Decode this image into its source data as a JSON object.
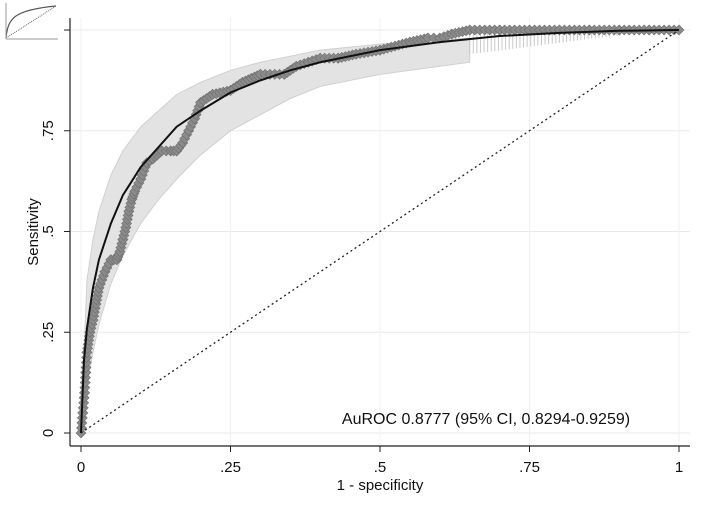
{
  "chart_data": {
    "type": "line",
    "title": "",
    "xlabel": "1 - specificity",
    "ylabel": "Sensitivity",
    "xlim": [
      0,
      1
    ],
    "ylim": [
      0,
      1
    ],
    "x_ticks": [
      0,
      0.25,
      0.5,
      0.75,
      1
    ],
    "x_tick_labels": [
      "0",
      ".25",
      ".5",
      ".75",
      "1"
    ],
    "y_ticks": [
      0,
      0.25,
      0.5,
      0.75,
      1
    ],
    "y_tick_labels": [
      "0",
      ".25",
      ".5",
      ".75",
      "1"
    ],
    "grid": true,
    "annotation": "AuROC 0.8777 (95% CI, 0.8294-0.9259)",
    "auroc": 0.8777,
    "ci": [
      0.8294,
      0.9259
    ],
    "empirical_roc": {
      "x": [
        0,
        0.003,
        0.006,
        0.008,
        0.01,
        0.015,
        0.02,
        0.025,
        0.03,
        0.04,
        0.05,
        0.06,
        0.065,
        0.07,
        0.075,
        0.08,
        0.085,
        0.09,
        0.1,
        0.11,
        0.12,
        0.135,
        0.15,
        0.16,
        0.17,
        0.18,
        0.19,
        0.2,
        0.22,
        0.25,
        0.27,
        0.3,
        0.34,
        0.36,
        0.38,
        0.4,
        0.43,
        0.46,
        0.5,
        0.55,
        0.58,
        0.6,
        0.62,
        0.65,
        0.7,
        0.75,
        0.8,
        0.85,
        0.9,
        0.95,
        1
      ],
      "y": [
        0,
        0.05,
        0.1,
        0.15,
        0.2,
        0.25,
        0.28,
        0.32,
        0.36,
        0.4,
        0.43,
        0.43,
        0.45,
        0.48,
        0.51,
        0.55,
        0.58,
        0.6,
        0.63,
        0.67,
        0.68,
        0.7,
        0.7,
        0.7,
        0.72,
        0.75,
        0.78,
        0.82,
        0.84,
        0.85,
        0.87,
        0.89,
        0.89,
        0.91,
        0.92,
        0.93,
        0.93,
        0.94,
        0.95,
        0.97,
        0.98,
        0.98,
        0.99,
        1,
        1,
        1,
        1,
        1,
        1,
        1,
        1
      ]
    },
    "smoothed_roc": {
      "x": [
        0,
        0.005,
        0.01,
        0.02,
        0.03,
        0.05,
        0.07,
        0.1,
        0.13,
        0.16,
        0.2,
        0.25,
        0.3,
        0.35,
        0.4,
        0.5,
        0.6,
        0.7,
        0.8,
        0.9,
        1
      ],
      "y": [
        0,
        0.18,
        0.26,
        0.36,
        0.43,
        0.52,
        0.59,
        0.66,
        0.71,
        0.76,
        0.8,
        0.845,
        0.875,
        0.9,
        0.92,
        0.95,
        0.97,
        0.985,
        0.993,
        0.998,
        1
      ]
    },
    "ci_band": {
      "x": [
        0,
        0.01,
        0.02,
        0.03,
        0.05,
        0.07,
        0.1,
        0.13,
        0.16,
        0.2,
        0.25,
        0.3,
        0.35,
        0.4,
        0.5,
        0.6,
        0.65
      ],
      "upper": [
        0.02,
        0.38,
        0.48,
        0.55,
        0.64,
        0.7,
        0.76,
        0.8,
        0.84,
        0.87,
        0.9,
        0.92,
        0.935,
        0.95,
        0.965,
        0.975,
        0.98
      ],
      "lower": [
        0,
        0.12,
        0.2,
        0.27,
        0.37,
        0.44,
        0.52,
        0.58,
        0.63,
        0.69,
        0.75,
        0.79,
        0.83,
        0.86,
        0.89,
        0.91,
        0.92
      ]
    },
    "reference_line": {
      "x": [
        0,
        1
      ],
      "y": [
        0,
        1
      ]
    }
  }
}
